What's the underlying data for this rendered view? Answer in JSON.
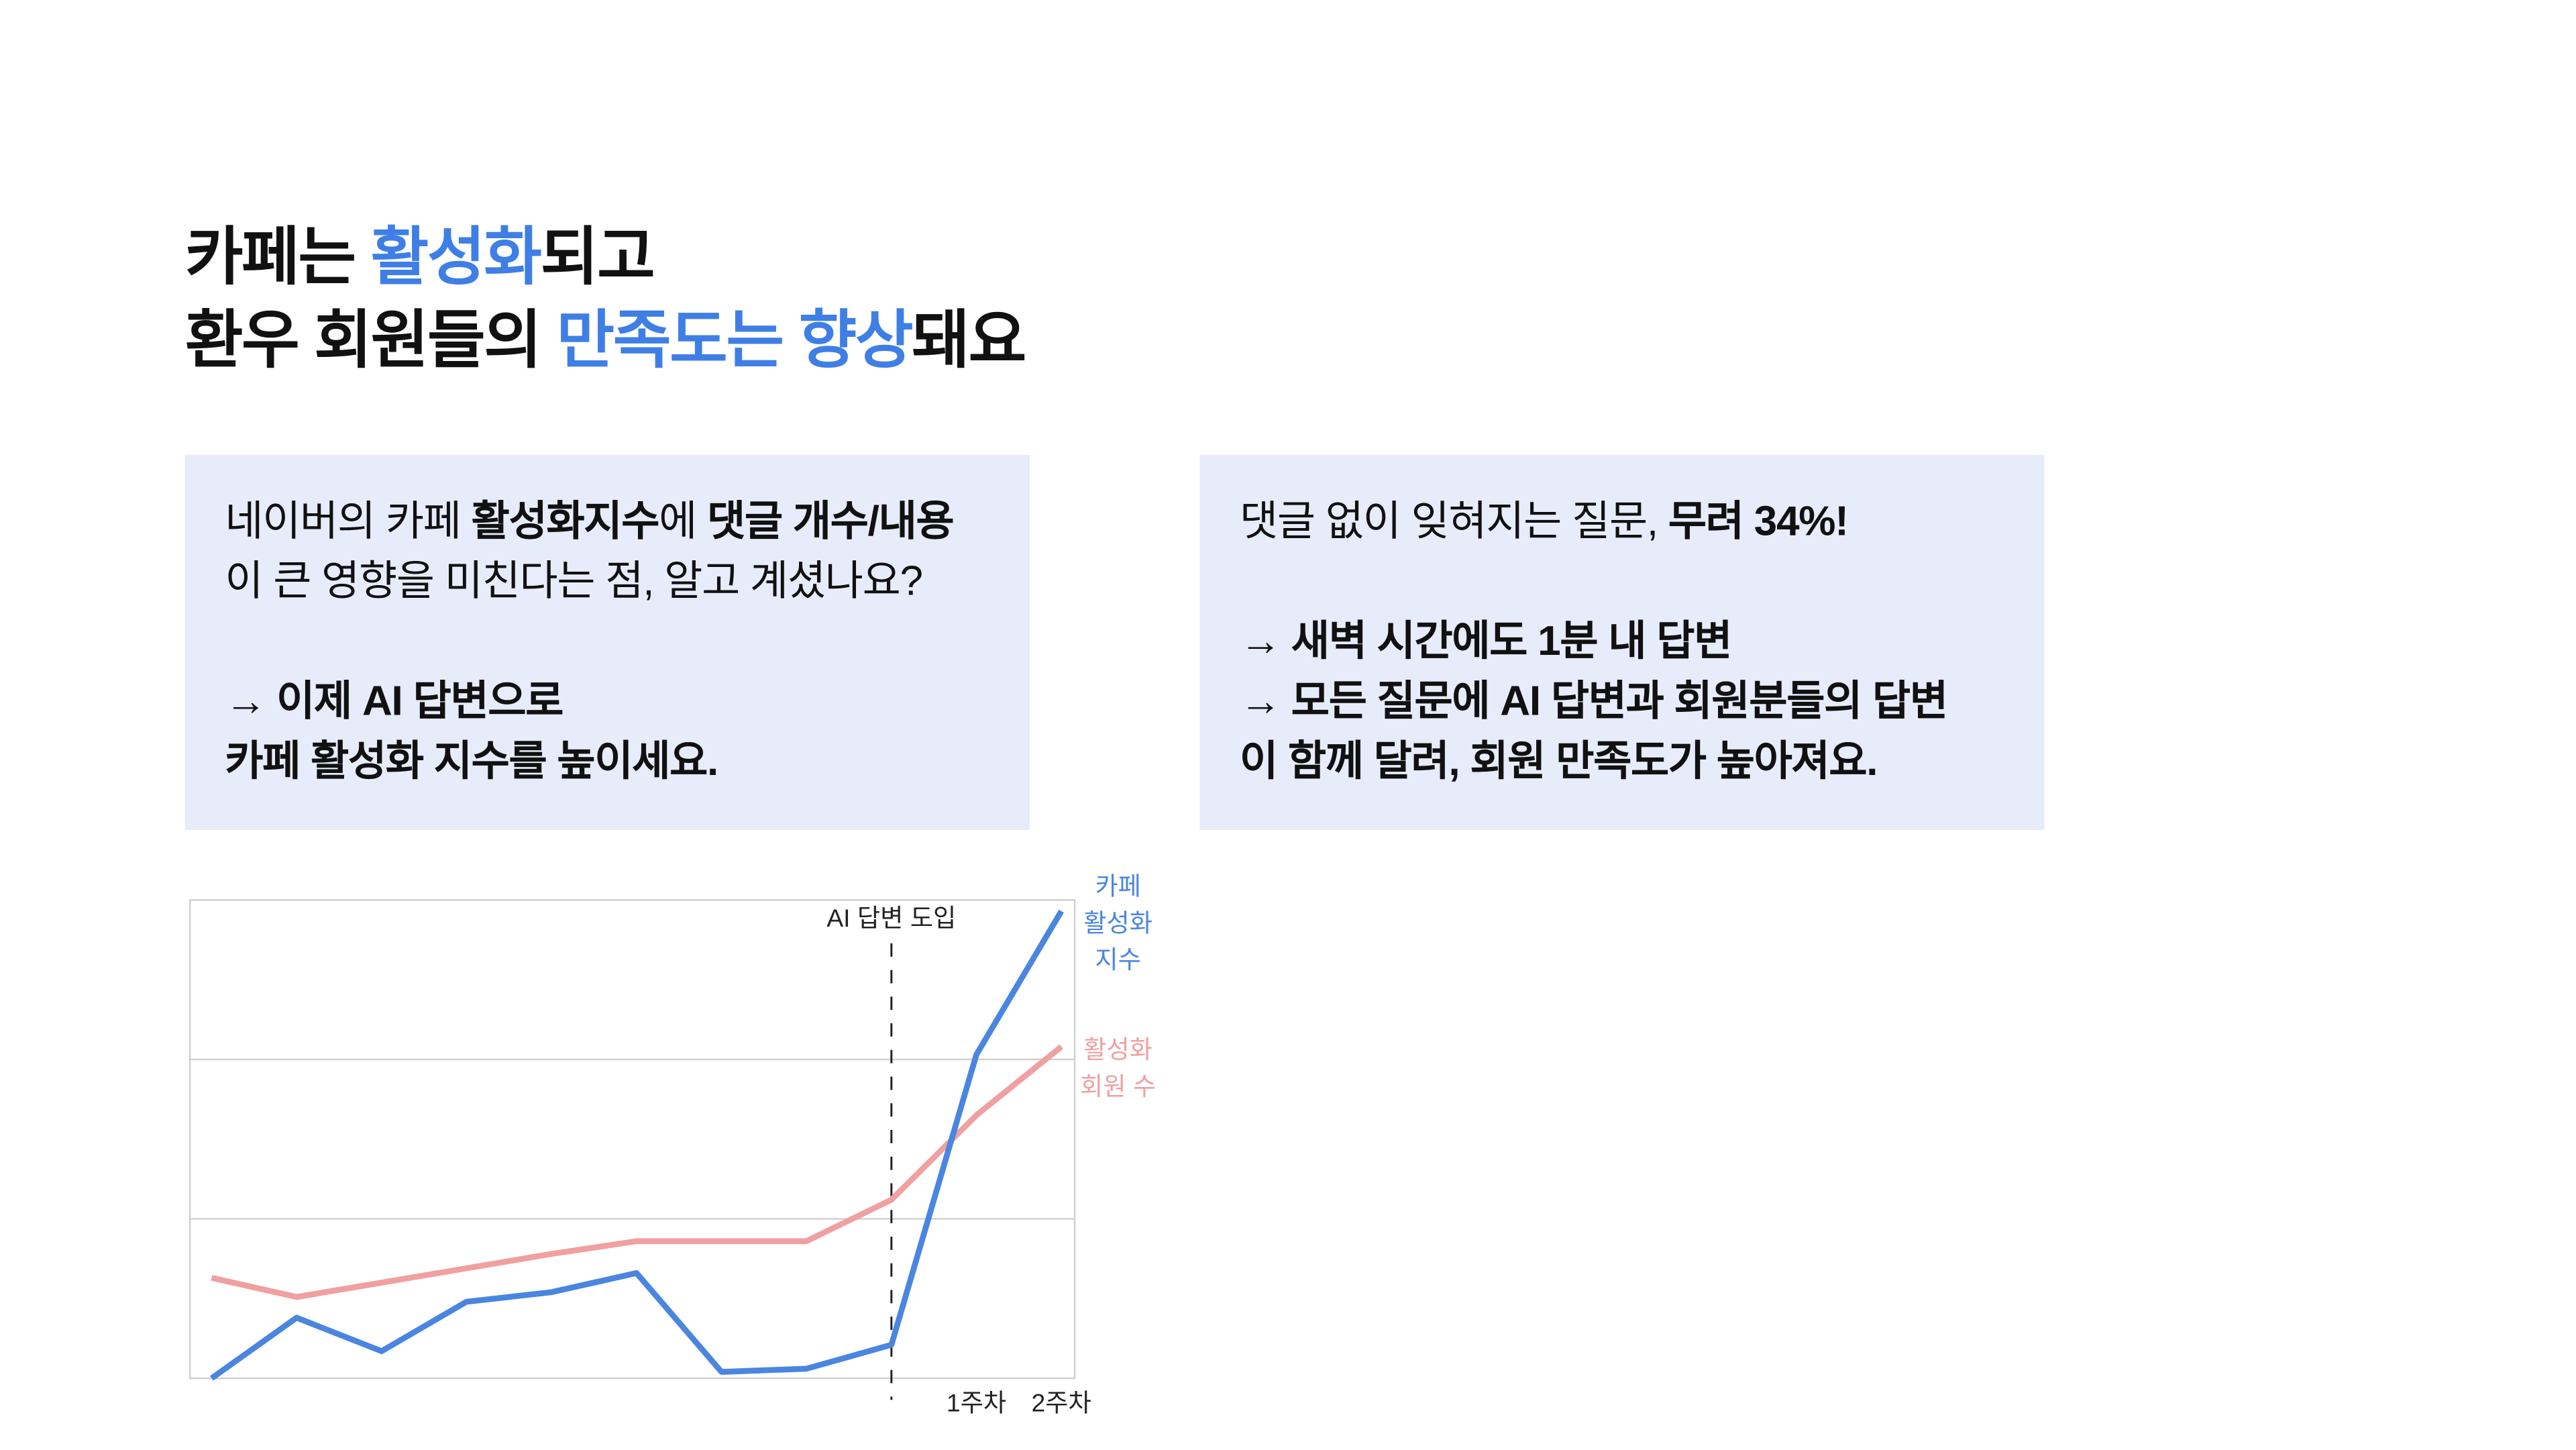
{
  "header": {
    "title_lines": [
      [
        "카페는",
        "활성화",
        "되고"
      ],
      [
        "환우 회원들의",
        "만족도는",
        "향상",
        "돼요"
      ]
    ]
  },
  "cards": [
    {
      "lines": [
        [
          "네이버의 카페",
          "활성화지수",
          "에",
          "댓글 개수/내용"
        ],
        [
          "이 큰 영향을 미친다는 점, 알고 계셨나요?"
        ],
        [
          "→ 이제 AI 답변으로"
        ],
        [
          "카페 활성화 지수를 높이세요."
        ]
      ]
    },
    {
      "lines": [
        [
          "댓글 없이 잊혀지는 질문,",
          "무려 34%!"
        ],
        [
          "→ 새벽 시간에도 1분 내 답변"
        ],
        [
          "→ 모든 질문에 AI 답변과 회원분들의 답변"
        ],
        [
          "이 함께 달려, 회원 만족도가 높아져요."
        ]
      ]
    }
  ],
  "chart_data": {
    "type": "line",
    "categories": [
      null,
      null,
      null,
      null,
      null,
      null,
      null,
      null,
      null,
      "1주차",
      "2주차"
    ],
    "ylim": [
      0,
      3
    ],
    "grid_lines": [
      1,
      2
    ],
    "marker": {
      "index": 8,
      "label": "AI 답변 도입"
    },
    "series": [
      {
        "label": [
          "카페",
          "활성화",
          "지수"
        ],
        "color": "#4a86e0",
        "values": [
          0,
          0.38,
          0.17,
          0.48,
          0.54,
          0.66,
          0.04,
          0.06,
          0.21,
          2.03,
          2.93
        ]
      },
      {
        "label": [
          "활성화",
          "회원 수"
        ],
        "color": "#f0a0a0",
        "values": [
          0.63,
          0.51,
          0.6,
          0.69,
          0.78,
          0.86,
          0.86,
          0.86,
          1.12,
          1.65,
          2.08
        ]
      }
    ]
  }
}
